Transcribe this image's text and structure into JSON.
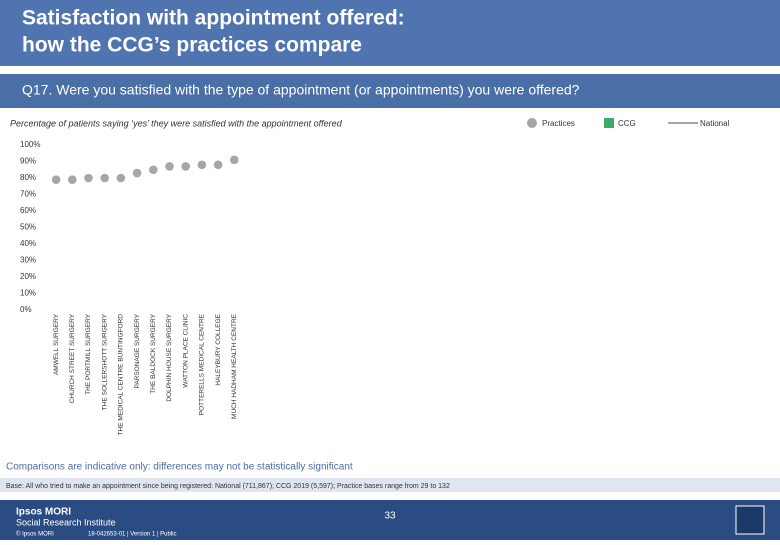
{
  "header": {
    "title_lines": [
      "Satisfaction with appointment offered:",
      "how the CCG’s practices compare"
    ]
  },
  "question": "Q17. Were you satisfied with the type of appointment (or appointments) you were offered?",
  "chart_data": {
    "type": "scatter",
    "subtitle": "Percentage of patients saying ‘yes’ they were satisfied with the appointment offered",
    "categories": [
      "AMWELL SURGERY",
      "CHURCH STREET SURGERY",
      "THE PORTMILL SURGERY",
      "THE SOLLERSHOTT SURGERY",
      "THE MEDICAL CENTRE BUNTINGFORD",
      "PARSONAGE SURGERY",
      "THE BALDOCK SURGERY",
      "DOLPHIN HOUSE SURGERY",
      "WATTON PLACE CLINIC",
      "POTTERELLS MEDICAL CENTRE",
      "HALEYBURY COLLEGE",
      "MUCH HADHAM HEALTH CENTRE"
    ],
    "series": [
      {
        "name": "Practices",
        "color": "#a6a6a6",
        "values": [
          79,
          79,
          80,
          80,
          80,
          83,
          85,
          87,
          87,
          88,
          88,
          91
        ]
      },
      {
        "name": "CCG",
        "color": "#3daa6a",
        "values": []
      },
      {
        "name": "National",
        "color": "#a6a6a6",
        "values": []
      }
    ],
    "ylim": [
      0,
      100
    ],
    "yticks": [
      {
        "value": 0,
        "label": "0%"
      },
      {
        "value": 10,
        "label": "10%"
      },
      {
        "value": 20,
        "label": "20%"
      },
      {
        "value": 30,
        "label": "30%"
      },
      {
        "value": 40,
        "label": "40%"
      },
      {
        "value": 50,
        "label": "50%"
      },
      {
        "value": 60,
        "label": "60%"
      },
      {
        "value": 70,
        "label": "70%"
      },
      {
        "value": 80,
        "label": "80%"
      },
      {
        "value": 90,
        "label": "90%"
      },
      {
        "value": 100,
        "label": "100%"
      }
    ],
    "grid": false
  },
  "note": "Comparisons are indicative only: differences may not be statistically significant",
  "base": "Base: All who tried to make an appointment since being registered: National (711,867); CCG 2019 (5,597); Practice bases range from 29 to 132",
  "footer": {
    "brand": "Ipsos MORI",
    "institute": "Social Research Institute",
    "page": "33",
    "copyright": "© Ipsos MORI",
    "version": "18-042653-01 | Version 1 | Public"
  }
}
